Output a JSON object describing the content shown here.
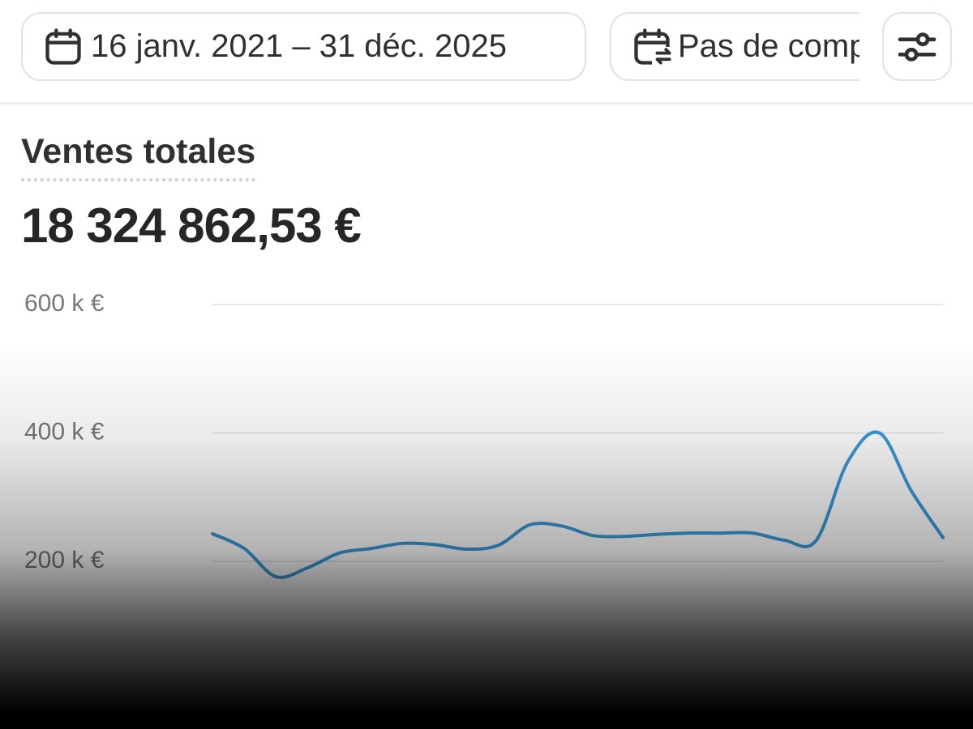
{
  "toolbar": {
    "date_range": "16 janv. 2021 – 31 déc. 2025",
    "comparison": "Pas de comparaison"
  },
  "metric": {
    "title": "Ventes totales",
    "value": "18 324 862,53 €"
  },
  "chart_data": {
    "type": "line",
    "categories": [
      null,
      null,
      null,
      null,
      null,
      null,
      null,
      null,
      null,
      null,
      null,
      null,
      null,
      null,
      null,
      null,
      null,
      null,
      null,
      null,
      null,
      null,
      null,
      null
    ],
    "series": [
      {
        "color": "#3a9ad9",
        "values": [
          243000,
          220000,
          176000,
          190000,
          213000,
          220000,
          228000,
          226000,
          219000,
          225000,
          257000,
          255000,
          240000,
          239000,
          242000,
          244000,
          244000,
          244000,
          233000,
          232000,
          355000,
          400000,
          310000,
          237000
        ]
      }
    ],
    "ylim": [
      0,
      600000
    ],
    "yticks": [
      {
        "value": 200000,
        "label": "200 k €"
      },
      {
        "value": 400000,
        "label": "400 k €"
      },
      {
        "value": 600000,
        "label": "600 k €"
      }
    ],
    "grid": true
  }
}
